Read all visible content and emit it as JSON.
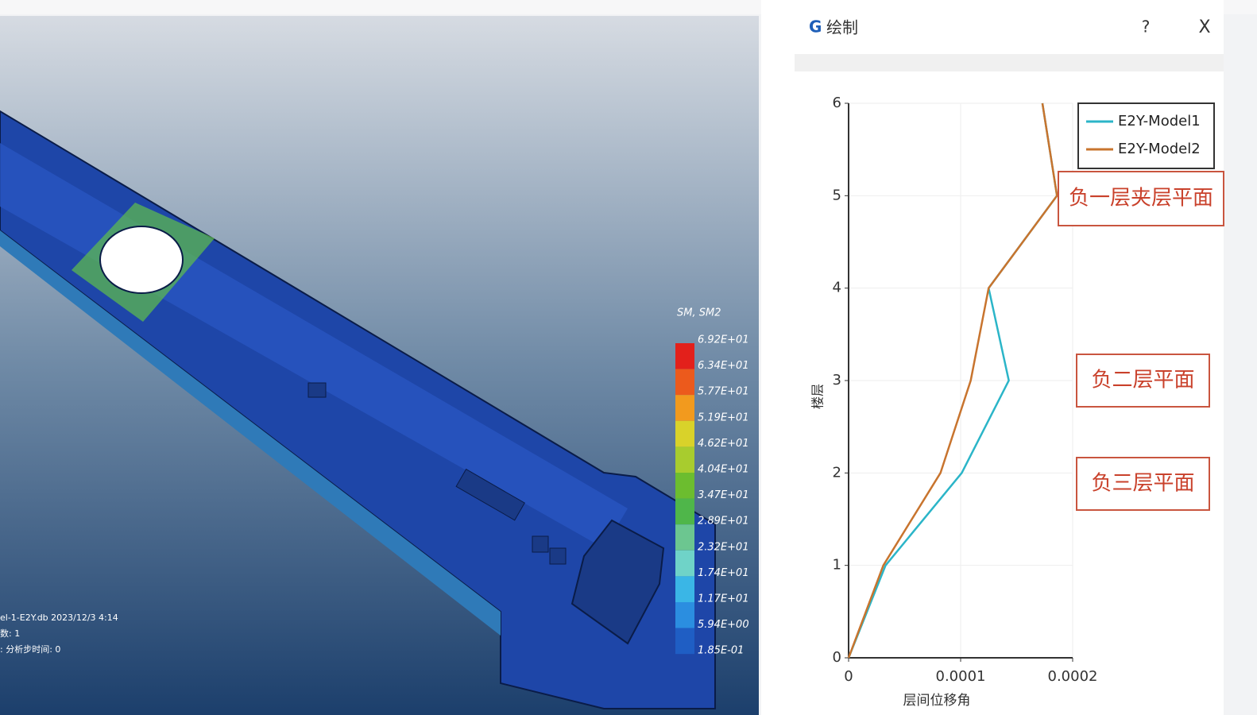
{
  "viewport": {
    "legend_title": "SM, SM2",
    "legend_labels": [
      "6.92E+01",
      "6.34E+01",
      "5.77E+01",
      "5.19E+01",
      "4.62E+01",
      "4.04E+01",
      "3.47E+01",
      "2.89E+01",
      "2.32E+01",
      "1.74E+01",
      "1.17E+01",
      "5.94E+00",
      "1.85E-01"
    ],
    "legend_colors": [
      "#e3201b",
      "#ec5a1c",
      "#f29a1e",
      "#d9d22a",
      "#a8cc2e",
      "#6cbd2f",
      "#4fb64a",
      "#6cc690",
      "#6fd3c8",
      "#3ab6e6",
      "#2b8ee0",
      "#1f5ec4"
    ],
    "info_lines": [
      "el-1-E2Y.db    2023/12/3 4:14",
      "数:  1",
      ":    分析步时间:  0"
    ]
  },
  "dialog": {
    "title": "绘制",
    "help": "?",
    "close": "X"
  },
  "chart_data": {
    "type": "line",
    "xlabel": "层间位移角",
    "ylabel": "楼层",
    "xlim": [
      0,
      0.0002
    ],
    "ylim": [
      0,
      6
    ],
    "xticks": [
      0,
      0.0001,
      0.0002
    ],
    "yticks": [
      0,
      1,
      2,
      3,
      4,
      5,
      6
    ],
    "grid": true,
    "legend": "upper right",
    "series": [
      {
        "name": "E2Y-Model1",
        "color": "#2bb5c8",
        "x": [
          0,
          3.3e-05,
          0.000101,
          0.000143,
          0.000125,
          0.000186,
          0.000173
        ],
        "values": [
          0,
          1,
          2,
          3,
          4,
          5,
          6
        ]
      },
      {
        "name": "E2Y-Model2",
        "color": "#c8742e",
        "x": [
          0,
          3.1e-05,
          8.2e-05,
          0.000109,
          0.000125,
          0.000186,
          0.000173
        ],
        "values": [
          0,
          1,
          2,
          3,
          4,
          5,
          6
        ]
      }
    ],
    "annotations": [
      "负一层夹层平面",
      "负二层平面",
      "负三层平面"
    ]
  }
}
